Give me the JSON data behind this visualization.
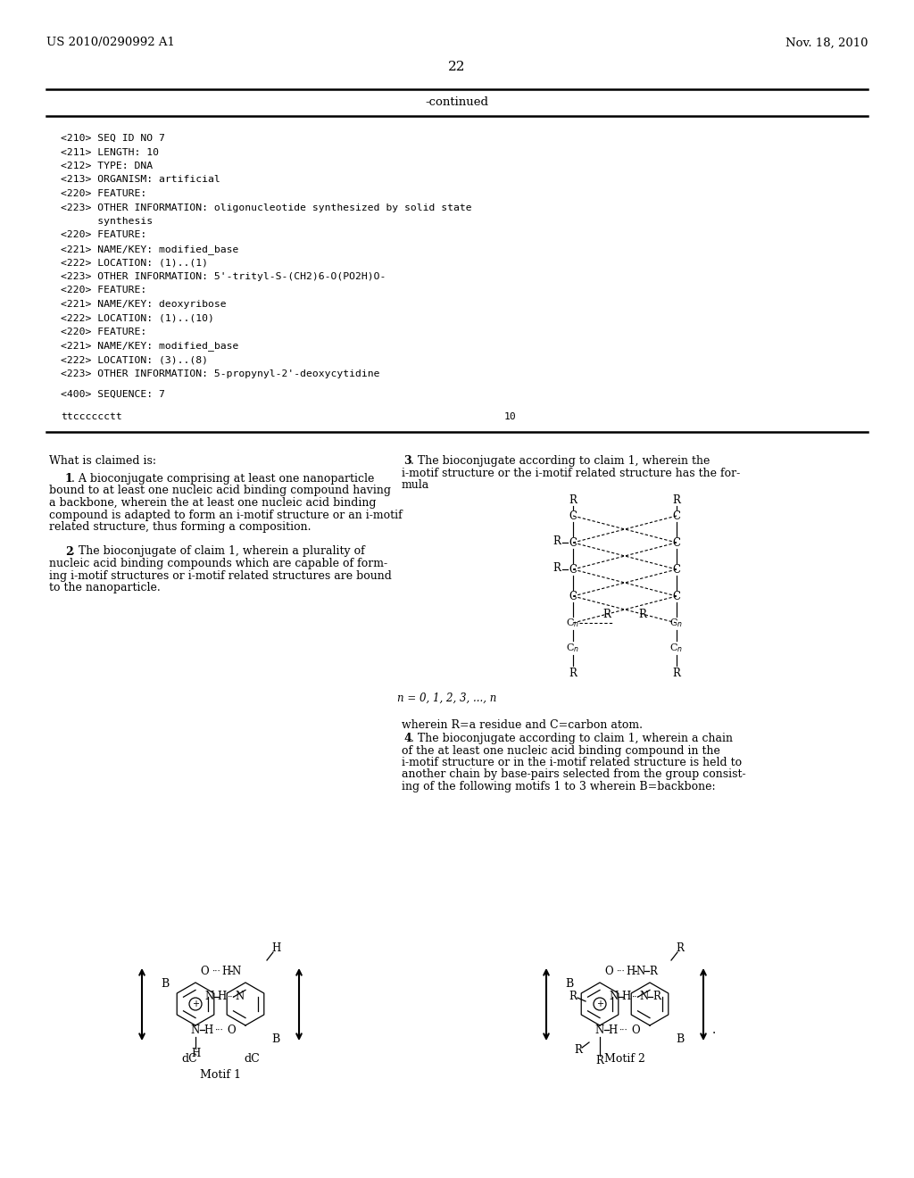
{
  "page_bg": "#ffffff",
  "header_left": "US 2010/0290992 A1",
  "header_right": "Nov. 18, 2010",
  "page_number": "22",
  "continued_label": "-continued",
  "seq_block": [
    "<210> SEQ ID NO 7",
    "<211> LENGTH: 10",
    "<212> TYPE: DNA",
    "<213> ORGANISM: artificial",
    "<220> FEATURE:",
    "<223> OTHER INFORMATION: oligonucleotide synthesized by solid state",
    "      synthesis",
    "<220> FEATURE:",
    "<221> NAME/KEY: modified_base",
    "<222> LOCATION: (1)..(1)",
    "<223> OTHER INFORMATION: 5'-trityl-S-(CH2)6-O(PO2H)O-",
    "<220> FEATURE:",
    "<221> NAME/KEY: deoxyribose",
    "<222> LOCATION: (1)..(10)",
    "<220> FEATURE:",
    "<221> NAME/KEY: modified_base",
    "<222> LOCATION: (3)..(8)",
    "<223> OTHER INFORMATION: 5-propynyl-2'-deoxycytidine"
  ],
  "seq400": "<400> SEQUENCE: 7",
  "seq_data": "ttcccccctt",
  "seq_num": "10",
  "claims_title": "What is claimed is:",
  "claim3_formula_note": "n = 0, 1, 2, 3, ..., n",
  "claim3_note": "wherein R=a residue and C=carbon atom.",
  "motif1_caption": "Motif 1",
  "motif2_label": "Motif 2",
  "text_color": "#000000"
}
